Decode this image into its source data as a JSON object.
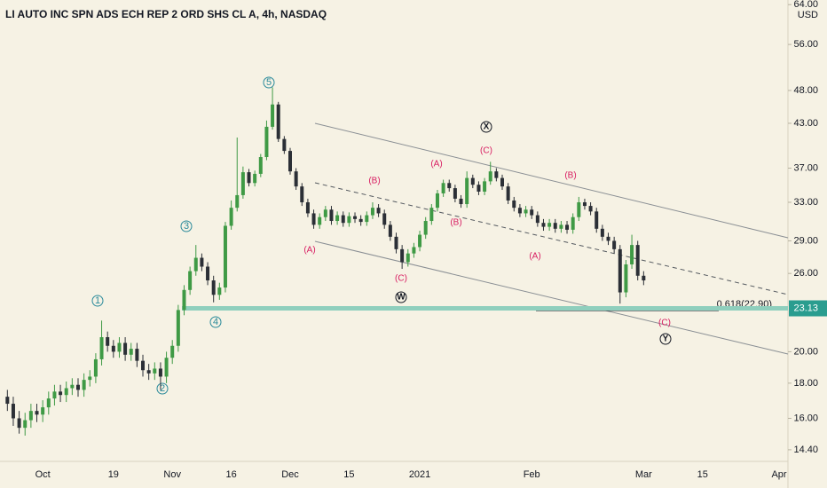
{
  "chart_data": {
    "type": "candlestick",
    "title": "LI AUTO INC SPN ADS ECH REP 2 ORD SHS CL A, 4h, NASDAQ",
    "y_axis_unit": "USD",
    "log_scale": true,
    "up_color": "#3f9a45",
    "down_color": "#2b2f36",
    "price_line": 23.13,
    "fib_label": "0.618(22.90)",
    "ylim": [
      13.85,
      65
    ],
    "yticks": [
      {
        "value": 14.4,
        "label": "14.40"
      },
      {
        "value": 16,
        "label": "16.00"
      },
      {
        "value": 18,
        "label": "18.00"
      },
      {
        "value": 20,
        "label": "20.00"
      },
      {
        "value": 26,
        "label": "26.00"
      },
      {
        "value": 29,
        "label": "29.00"
      },
      {
        "value": 33,
        "label": "33.00"
      },
      {
        "value": 37,
        "label": "37.00"
      },
      {
        "value": 43,
        "label": "43.00"
      },
      {
        "value": 48,
        "label": "48.00"
      },
      {
        "value": 56,
        "label": "56.00"
      },
      {
        "value": 64,
        "label": "64.00"
      }
    ],
    "categories": [
      null,
      null,
      null,
      null,
      null,
      null,
      "Oct",
      null,
      null,
      null,
      null,
      null,
      null,
      null,
      null,
      null,
      null,
      null,
      "19",
      null,
      null,
      null,
      null,
      null,
      null,
      null,
      null,
      null,
      "Nov",
      null,
      null,
      null,
      null,
      null,
      null,
      null,
      null,
      null,
      "16",
      null,
      null,
      null,
      null,
      null,
      null,
      null,
      null,
      null,
      "Dec",
      null,
      null,
      null,
      null,
      null,
      null,
      null,
      null,
      null,
      "15",
      null,
      null,
      null,
      null,
      null,
      null,
      null,
      null,
      null,
      null,
      null,
      "2021",
      null,
      null,
      null,
      null,
      null,
      null,
      null,
      null,
      null,
      null,
      null,
      null,
      null,
      null,
      null,
      null,
      null,
      null,
      "Feb",
      null,
      null,
      null,
      null,
      null,
      null,
      null,
      null,
      null,
      null,
      null,
      null,
      null,
      null,
      null,
      null,
      null,
      null,
      "Mar",
      null,
      null,
      null,
      null,
      null,
      null,
      null,
      null,
      null,
      "15",
      null,
      null,
      null,
      null,
      null,
      null,
      null,
      null,
      null,
      null,
      null,
      null,
      "Apr",
      null
    ],
    "open": [
      17.2,
      16.8,
      16.0,
      15.5,
      15.9,
      16.4,
      16.2,
      16.6,
      17.1,
      17.5,
      17.3,
      17.7,
      17.9,
      17.6,
      18.2,
      18.4,
      19.5,
      21.0,
      20.4,
      20.0,
      20.6,
      19.8,
      20.2,
      19.4,
      18.8,
      18.6,
      18.9,
      18.4,
      19.6,
      20.4,
      23.0,
      24.6,
      26.2,
      27.4,
      26.6,
      25.4,
      24.2,
      24.8,
      30.5,
      32.4,
      33.8,
      36.5,
      35.2,
      36.3,
      38.4,
      42.5,
      45.8,
      40.8,
      39.2,
      36.6,
      34.8,
      33.0,
      31.8,
      30.6,
      31.4,
      32.2,
      31.0,
      31.6,
      30.8,
      31.5,
      31.2,
      30.9,
      31.6,
      32.4,
      31.8,
      30.6,
      29.4,
      28.2,
      27.0,
      27.8,
      28.4,
      29.6,
      31.0,
      32.4,
      34.0,
      35.2,
      34.6,
      33.4,
      32.8,
      35.8,
      35.0,
      34.2,
      35.4,
      36.6,
      35.8,
      34.8,
      33.2,
      32.4,
      31.8,
      32.2,
      31.6,
      30.8,
      30.4,
      30.8,
      30.2,
      30.6,
      30.1,
      31.4,
      33.0,
      32.6,
      32.0,
      30.2,
      29.4,
      29.0,
      28.2,
      24.4,
      26.8,
      28.6,
      25.8,
      null,
      null,
      null,
      null,
      null,
      null,
      null,
      null,
      null,
      null,
      null,
      null,
      null,
      null,
      null,
      null,
      null,
      null,
      null,
      null,
      null,
      null,
      null,
      null
    ],
    "high": [
      17.6,
      17.2,
      16.4,
      16.3,
      16.8,
      16.8,
      17.0,
      17.5,
      17.9,
      17.9,
      18.1,
      18.3,
      18.3,
      18.6,
      18.8,
      19.9,
      22.2,
      21.4,
      20.8,
      21.0,
      21.0,
      20.6,
      20.6,
      19.8,
      19.2,
      19.3,
      19.3,
      20.0,
      20.8,
      23.4,
      25.0,
      26.6,
      28.6,
      27.8,
      27.0,
      25.8,
      25.2,
      30.9,
      33.2,
      41.0,
      37.2,
      36.9,
      36.7,
      38.8,
      43.4,
      48.5,
      46.2,
      41.2,
      39.6,
      37.0,
      35.2,
      33.4,
      32.2,
      31.8,
      32.6,
      32.6,
      32.0,
      32.0,
      31.9,
      31.9,
      31.6,
      32.0,
      33.0,
      32.8,
      32.2,
      31.0,
      29.8,
      28.6,
      28.2,
      28.8,
      30.0,
      31.4,
      32.8,
      34.4,
      35.6,
      35.6,
      35.0,
      33.8,
      36.6,
      36.2,
      35.4,
      35.8,
      37.8,
      37.0,
      36.2,
      35.2,
      33.6,
      32.8,
      32.6,
      32.6,
      32.0,
      31.2,
      31.2,
      31.2,
      31.0,
      31.0,
      31.8,
      33.6,
      33.4,
      33.0,
      32.4,
      30.6,
      29.8,
      29.4,
      28.6,
      27.2,
      29.6,
      29.0,
      26.2,
      null,
      null,
      null,
      null,
      null,
      null,
      null,
      null,
      null,
      null,
      null,
      null,
      null,
      null,
      null,
      null,
      null,
      null,
      null,
      null,
      null,
      null,
      null,
      null
    ],
    "low": [
      16.4,
      15.6,
      15.2,
      15.1,
      15.5,
      15.8,
      15.8,
      16.2,
      16.7,
      16.9,
      16.9,
      17.3,
      17.2,
      17.2,
      17.8,
      18.0,
      19.1,
      20.0,
      19.6,
      19.6,
      19.4,
      19.4,
      19.0,
      18.4,
      18.2,
      18.2,
      17.6,
      18.0,
      19.2,
      20.0,
      22.6,
      24.2,
      25.8,
      26.2,
      25.0,
      23.6,
      23.8,
      24.4,
      30.1,
      32.0,
      33.4,
      34.8,
      34.8,
      35.9,
      38.0,
      42.1,
      40.4,
      38.8,
      36.2,
      34.4,
      32.6,
      31.4,
      30.2,
      30.2,
      31.0,
      30.6,
      30.6,
      30.4,
      30.4,
      30.8,
      30.5,
      30.5,
      31.2,
      31.4,
      30.2,
      29.0,
      27.8,
      26.4,
      26.6,
      27.4,
      28.0,
      29.2,
      30.6,
      32.0,
      33.6,
      34.2,
      33.0,
      32.4,
      32.4,
      34.6,
      33.8,
      33.8,
      35.0,
      35.4,
      34.4,
      32.8,
      32.0,
      31.4,
      31.4,
      31.2,
      30.4,
      30.0,
      30.0,
      29.8,
      29.8,
      29.7,
      29.7,
      31.0,
      32.2,
      31.6,
      29.8,
      29.0,
      28.6,
      27.8,
      23.5,
      24.0,
      26.4,
      25.4,
      25.0,
      null,
      null,
      null,
      null,
      null,
      null,
      null,
      null,
      null,
      null,
      null,
      null,
      null,
      null,
      null,
      null,
      null,
      null,
      null,
      null,
      null,
      null,
      null,
      null
    ],
    "close": [
      16.8,
      16.0,
      15.5,
      15.9,
      16.4,
      16.2,
      16.6,
      17.1,
      17.5,
      17.3,
      17.7,
      17.9,
      17.6,
      18.2,
      18.4,
      19.5,
      21.0,
      20.4,
      20.0,
      20.6,
      19.8,
      20.2,
      19.4,
      18.8,
      18.6,
      18.9,
      18.4,
      19.6,
      20.4,
      23.0,
      24.6,
      26.2,
      27.4,
      26.6,
      25.4,
      24.2,
      24.8,
      30.5,
      32.4,
      33.8,
      36.5,
      35.2,
      36.3,
      38.4,
      42.5,
      45.8,
      40.8,
      39.2,
      36.6,
      34.8,
      33.0,
      31.8,
      30.6,
      31.4,
      32.2,
      31.0,
      31.6,
      30.8,
      31.5,
      31.2,
      30.9,
      31.6,
      32.4,
      31.8,
      30.6,
      29.4,
      28.2,
      27.0,
      27.8,
      28.4,
      29.6,
      31.0,
      32.4,
      34.0,
      35.2,
      34.6,
      33.4,
      32.8,
      35.8,
      35.0,
      34.2,
      35.4,
      36.6,
      35.8,
      34.8,
      33.2,
      32.4,
      31.8,
      32.2,
      31.6,
      30.8,
      30.4,
      30.8,
      30.2,
      30.6,
      30.1,
      31.4,
      33.0,
      32.6,
      32.0,
      30.2,
      29.4,
      29.0,
      28.2,
      24.4,
      26.8,
      28.6,
      25.8,
      25.4,
      null,
      null,
      null,
      null,
      null,
      null,
      null,
      null,
      null,
      null,
      null,
      null,
      null,
      null,
      null,
      null,
      null,
      null,
      null,
      null,
      null,
      null,
      null,
      null
    ],
    "annotations": [
      "1",
      "2",
      "3",
      "4",
      "5",
      "W",
      "X",
      "Y",
      "(A)",
      "(B)",
      "(C)",
      "(A)",
      "(B)",
      "(C)",
      "(A)",
      "(B)",
      "(C)"
    ]
  }
}
